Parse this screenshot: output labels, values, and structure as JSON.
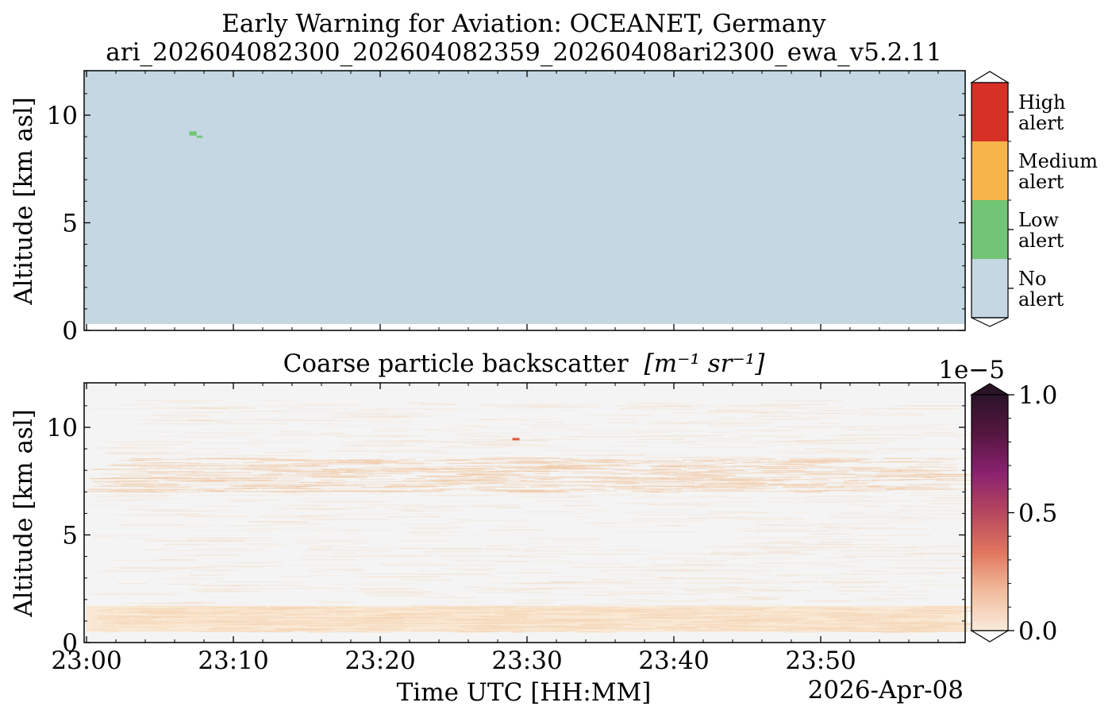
{
  "figure": {
    "title_line1": "Early Warning for Aviation: OCEANET, Germany",
    "title_line2": "ari_202604082300_202604082359_20260408ari2300_ewa_v5.2.11"
  },
  "chart_data": [
    {
      "type": "heatmap",
      "title": "",
      "xlabel": "",
      "ylabel": "Altitude [km asl]",
      "x_ticks": [],
      "y_ticks": [
        "0",
        "5",
        "10"
      ],
      "ylim": [
        0,
        12
      ],
      "xlim_minutes": [
        0,
        60
      ],
      "background_value": "No alert",
      "colorbar": {
        "type": "categorical",
        "categories": [
          {
            "label_line1": "High",
            "label_line2": "alert",
            "color": "#d73027"
          },
          {
            "label_line1": "Medium",
            "label_line2": "alert",
            "color": "#f7b44a"
          },
          {
            "label_line1": "Low",
            "label_line2": "alert",
            "color": "#72c574"
          },
          {
            "label_line1": "No",
            "label_line2": "alert",
            "color": "#c4d7e3"
          }
        ]
      },
      "alert_cells": [
        {
          "time_min": 7.0,
          "time_end_min": 7.5,
          "altitude_km": 9.05,
          "altitude_end_km": 9.25,
          "level": "Low alert"
        },
        {
          "time_min": 7.5,
          "time_end_min": 7.9,
          "altitude_km": 8.95,
          "altitude_end_km": 9.05,
          "level": "Low alert"
        }
      ]
    },
    {
      "type": "heatmap",
      "title": "Coarse particle backscatter",
      "title_unit": "[m⁻¹ sr⁻¹]",
      "xlabel": "Time UTC [HH:MM]",
      "date_label": "2026-Apr-08",
      "ylabel": "Altitude [km asl]",
      "x_ticks": [
        "23:00",
        "23:10",
        "23:20",
        "23:30",
        "23:40",
        "23:50"
      ],
      "x_tick_minutes": [
        0,
        10,
        20,
        30,
        40,
        50
      ],
      "y_ticks": [
        "0",
        "5",
        "10"
      ],
      "ylim": [
        0,
        12
      ],
      "xlim_minutes": [
        0,
        60
      ],
      "colorbar": {
        "type": "continuous",
        "ticks": [
          "0.0",
          "0.5",
          "1.0"
        ],
        "offset_label": "1e−5",
        "vmin": 0.0,
        "vmax": 1.0,
        "colors": [
          "#faebdc",
          "#f2bc9c",
          "#e0765e",
          "#b5475e",
          "#8a2270",
          "#561640",
          "#2b1328"
        ]
      },
      "features": [
        {
          "name": "boundary layer",
          "altitude_km": [
            0.5,
            1.7
          ],
          "value": 0.04
        },
        {
          "name": "mid layer",
          "altitude_km": [
            7.0,
            8.6
          ],
          "value": 0.03
        },
        {
          "name": "strong echo",
          "time_min": 29.0,
          "altitude_km": 9.45,
          "value": 0.35
        }
      ]
    }
  ]
}
